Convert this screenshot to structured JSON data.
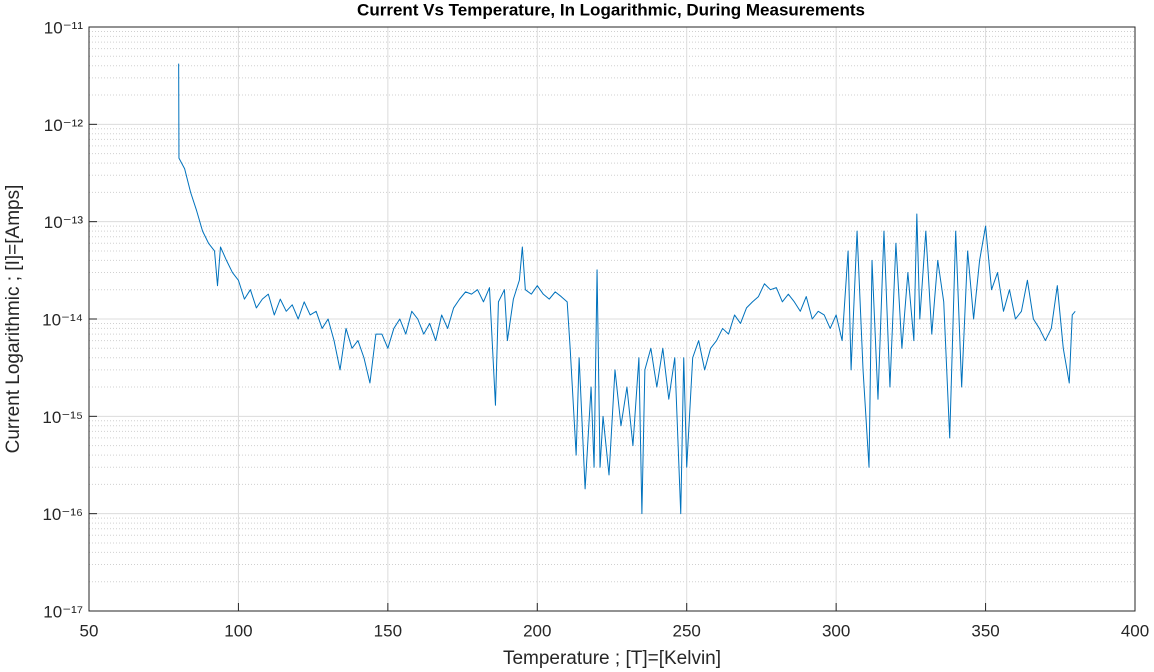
{
  "chart_data": {
    "type": "line",
    "title": "Current Vs Temperature, In Logarithmic, During Measurements",
    "x_label": "Temperature ; [T]=[Kelvin]",
    "y_label": "Current Logarithmic ; [I]=[Amps]",
    "log_y": true,
    "grid": true,
    "minor_grid": true,
    "xlim": [
      50,
      400
    ],
    "xticks": [
      50,
      100,
      150,
      200,
      250,
      300,
      350,
      400
    ],
    "ylim": [
      1e-17,
      1e-11
    ],
    "yticks": [
      {
        "value": 1e-17,
        "label": "10⁻¹⁷"
      },
      {
        "value": 1e-16,
        "label": "10⁻¹⁶"
      },
      {
        "value": 1e-15,
        "label": "10⁻¹⁵"
      },
      {
        "value": 1e-14,
        "label": "10⁻¹⁴"
      },
      {
        "value": 1e-13,
        "label": "10⁻¹³"
      },
      {
        "value": 1e-12,
        "label": "10⁻¹²"
      },
      {
        "value": 1e-11,
        "label": "10⁻¹¹"
      }
    ],
    "x": [
      80,
      80.1,
      82,
      84,
      86,
      88,
      90,
      92,
      93,
      94,
      96,
      98,
      100,
      102,
      104,
      106,
      108,
      110,
      112,
      114,
      116,
      118,
      120,
      122,
      124,
      126,
      128,
      130,
      132,
      134,
      136,
      138,
      140,
      142,
      144,
      146,
      148,
      150,
      152,
      154,
      156,
      158,
      160,
      162,
      164,
      166,
      168,
      170,
      172,
      174,
      176,
      178,
      180,
      182,
      184,
      186,
      187,
      189,
      190,
      192,
      194,
      195,
      196,
      198,
      200,
      202,
      204,
      206,
      208,
      210,
      211,
      213,
      214,
      216,
      218,
      219,
      220,
      221,
      222,
      224,
      226,
      228,
      230,
      232,
      234,
      235,
      236,
      238,
      240,
      242,
      244,
      246,
      248,
      249,
      250,
      252,
      254,
      256,
      258,
      260,
      262,
      264,
      266,
      268,
      270,
      272,
      274,
      276,
      278,
      280,
      282,
      284,
      286,
      288,
      290,
      292,
      294,
      296,
      298,
      300,
      302,
      304,
      305,
      307,
      309,
      311,
      312,
      314,
      316,
      318,
      320,
      322,
      324,
      326,
      327,
      328,
      330,
      332,
      334,
      336,
      338,
      340,
      342,
      344,
      346,
      348,
      350,
      352,
      354,
      356,
      358,
      360,
      362,
      364,
      366,
      368,
      370,
      372,
      374,
      376,
      378,
      379,
      380
    ],
    "series": [
      {
        "color": "#0072bd",
        "values": [
          4.2e-12,
          4.5e-13,
          3.5e-13,
          2e-13,
          1.3e-13,
          8e-14,
          6e-14,
          5e-14,
          2.2e-14,
          5.5e-14,
          4e-14,
          3e-14,
          2.5e-14,
          1.6e-14,
          2e-14,
          1.3e-14,
          1.6e-14,
          1.8e-14,
          1.1e-14,
          1.6e-14,
          1.2e-14,
          1.4e-14,
          1e-14,
          1.5e-14,
          1.1e-14,
          1.2e-14,
          8e-15,
          1e-14,
          6e-15,
          3e-15,
          8e-15,
          5e-15,
          6e-15,
          4e-15,
          2.2e-15,
          7e-15,
          7e-15,
          5e-15,
          8e-15,
          1e-14,
          7e-15,
          1.2e-14,
          1e-14,
          7e-15,
          9e-15,
          6e-15,
          1.1e-14,
          8e-15,
          1.3e-14,
          1.6e-14,
          1.9e-14,
          1.8e-14,
          2e-14,
          1.5e-14,
          2.1e-14,
          1.3e-15,
          1.5e-14,
          2e-14,
          6e-15,
          1.6e-14,
          2.5e-14,
          5.5e-14,
          2e-14,
          1.8e-14,
          2.2e-14,
          1.8e-14,
          1.6e-14,
          1.9e-14,
          1.7e-14,
          1.5e-14,
          5e-15,
          4e-16,
          4e-15,
          1.8e-16,
          2e-15,
          3e-16,
          3.2e-14,
          3e-16,
          1e-15,
          2.5e-16,
          3e-15,
          8e-16,
          2e-15,
          5e-16,
          4e-15,
          1e-16,
          3e-15,
          5e-15,
          2e-15,
          5e-15,
          1.5e-15,
          4e-15,
          1e-16,
          4e-15,
          3e-16,
          4e-15,
          6e-15,
          3e-15,
          5e-15,
          6e-15,
          8e-15,
          7e-15,
          1.1e-14,
          9e-15,
          1.3e-14,
          1.5e-14,
          1.7e-14,
          2.3e-14,
          2e-14,
          2.1e-14,
          1.5e-14,
          1.8e-14,
          1.5e-14,
          1.2e-14,
          1.7e-14,
          1e-14,
          1.2e-14,
          1.1e-14,
          8e-15,
          1.1e-14,
          6e-15,
          5e-14,
          3e-15,
          8e-14,
          3e-15,
          3e-16,
          4e-14,
          1.5e-15,
          8e-14,
          2e-15,
          6e-14,
          5e-15,
          3e-14,
          6e-15,
          1.2e-13,
          1e-14,
          8e-14,
          7e-15,
          4e-14,
          1.5e-14,
          6e-16,
          8e-14,
          2e-15,
          5e-14,
          1e-14,
          4e-14,
          9e-14,
          2e-14,
          3e-14,
          1.2e-14,
          2e-14,
          1e-14,
          1.2e-14,
          2.5e-14,
          1e-14,
          8e-15,
          6e-15,
          8e-15,
          2.2e-14,
          5e-15,
          2.2e-15,
          1.1e-14,
          1.2e-14
        ]
      }
    ]
  }
}
